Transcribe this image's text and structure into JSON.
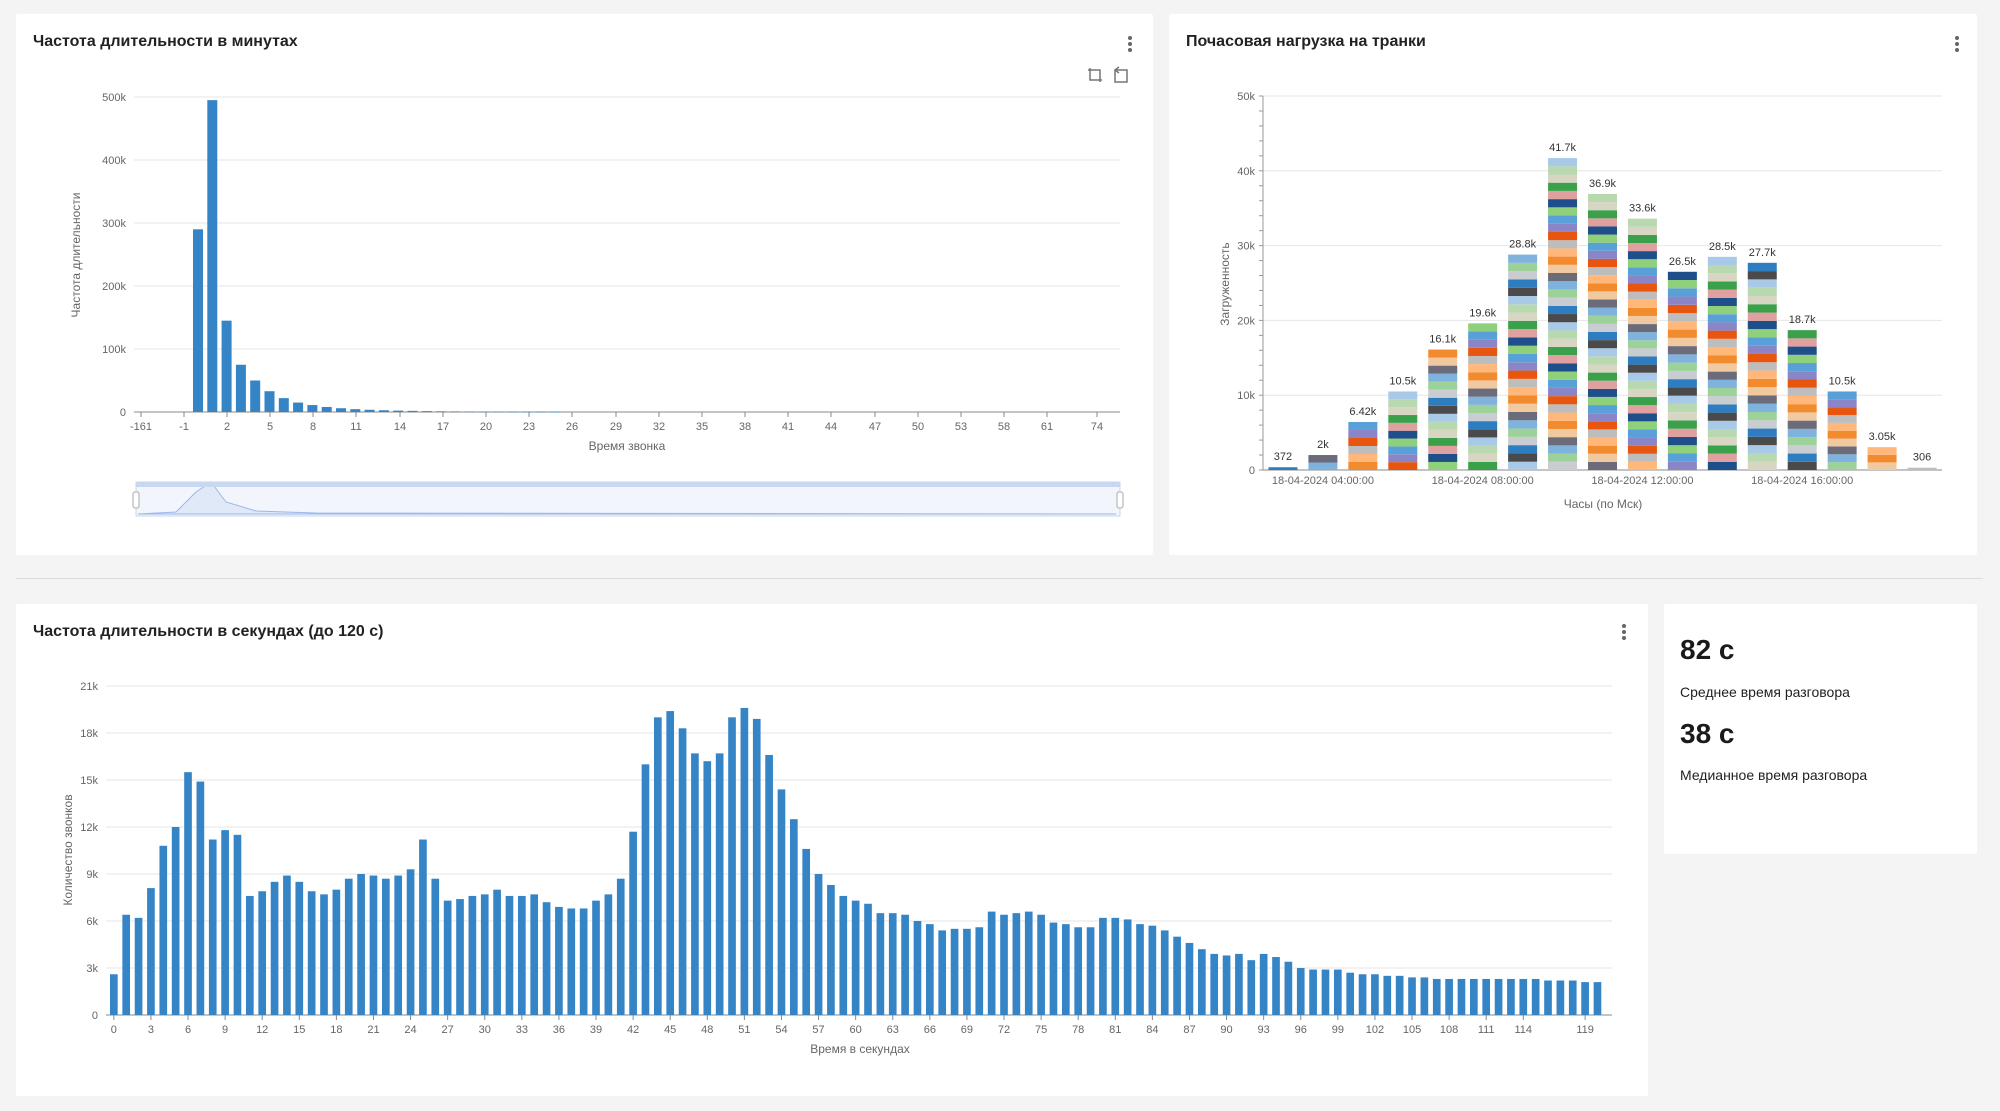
{
  "panels": {
    "minutes": {
      "title": "Частота длительности в минутах"
    },
    "trunks": {
      "title": "Почасовая нагрузка на транки"
    },
    "seconds": {
      "title": "Частота длительности в секундах (до 120 с)"
    },
    "stats": {
      "avg_value": "82 с",
      "avg_label": "Среднее время разговора",
      "median_value": "38 с",
      "median_label": "Медианное время разговора"
    }
  },
  "icons": {
    "menu": "kebab-menu-icon",
    "zoom": "zoom-select-icon",
    "reset": "zoom-reset-icon"
  },
  "colors": {
    "bar": "#3584c6",
    "grid": "#e6e6e6",
    "zoom_fill": "#dfe9f7"
  },
  "chart_data": [
    {
      "type": "bar",
      "title": "Частота длительности в минутах",
      "xlabel": "Время звонка",
      "ylabel": "Частота длительности",
      "ylim": [
        0,
        500000
      ],
      "y_ticks": [
        "0",
        "100k",
        "200k",
        "300k",
        "400k",
        "500k"
      ],
      "x_tick_labels": [
        "-161",
        "-1",
        "2",
        "5",
        "8",
        "11",
        "14",
        "17",
        "20",
        "23",
        "26",
        "29",
        "32",
        "35",
        "38",
        "41",
        "44",
        "47",
        "50",
        "53",
        "58",
        "61",
        "74"
      ],
      "bars": [
        {
          "x": 0,
          "value": 290000
        },
        {
          "x": 1,
          "value": 495000
        },
        {
          "x": 2,
          "value": 145000
        },
        {
          "x": 3,
          "value": 75000
        },
        {
          "x": 4,
          "value": 50000
        },
        {
          "x": 5,
          "value": 33000
        },
        {
          "x": 6,
          "value": 22000
        },
        {
          "x": 7,
          "value": 15000
        },
        {
          "x": 8,
          "value": 11000
        },
        {
          "x": 9,
          "value": 8000
        },
        {
          "x": 10,
          "value": 6000
        },
        {
          "x": 11,
          "value": 4500
        },
        {
          "x": 12,
          "value": 3500
        },
        {
          "x": 13,
          "value": 2800
        },
        {
          "x": 14,
          "value": 2200
        },
        {
          "x": 15,
          "value": 1800
        },
        {
          "x": 16,
          "value": 1400
        },
        {
          "x": 17,
          "value": 1100
        },
        {
          "x": 18,
          "value": 900
        },
        {
          "x": 19,
          "value": 700
        },
        {
          "x": 20,
          "value": 600
        },
        {
          "x": 21,
          "value": 500
        },
        {
          "x": 22,
          "value": 400
        },
        {
          "x": 23,
          "value": 350
        },
        {
          "x": 24,
          "value": 300
        },
        {
          "x": 25,
          "value": 250
        }
      ],
      "grid": true,
      "zoom_slider": true
    },
    {
      "type": "bar",
      "stacked": true,
      "title": "Почасовая нагрузка на транки",
      "xlabel": "Часы (по Мск)",
      "ylabel": "Загруженность",
      "ylim": [
        0,
        50000
      ],
      "y_ticks": [
        "0",
        "10k",
        "20k",
        "30k",
        "40k",
        "50k"
      ],
      "x_tick_labels": [
        "18-04-2024 04:00:00",
        "18-04-2024 08:00:00",
        "18-04-2024 12:00:00",
        "18-04-2024 16:00:00"
      ],
      "totals": [
        372,
        2000,
        6420,
        10500,
        16100,
        19600,
        28800,
        41700,
        36900,
        33600,
        26500,
        28500,
        27700,
        18700,
        10500,
        3050,
        306
      ],
      "total_labels": [
        "372",
        "2k",
        "6.42k",
        "10.5k",
        "16.1k",
        "19.6k",
        "28.8k",
        "41.7k",
        "36.9k",
        "33.6k",
        "26.5k",
        "28.5k",
        "27.7k",
        "18.7k",
        "10.5k",
        "3.05k",
        "306"
      ],
      "series_colors": [
        "#2f7dc1",
        "#7fb3de",
        "#f28a2e",
        "#e8550e",
        "#8fd07a",
        "#3aa14a",
        "#a9c9e8",
        "#c9ccd1",
        "#6b6b7a",
        "#ffb77a",
        "#8a85c7",
        "#1f4f8a",
        "#d6d6c2",
        "#4a4a4a",
        "#9dd19a",
        "#f0c9a0",
        "#bdbdbd",
        "#5aa0d8",
        "#e0a0a0",
        "#b8d8b0"
      ],
      "grid": true
    },
    {
      "type": "bar",
      "title": "Частота длительности в секундах (до 120 с)",
      "xlabel": "Время в секундах",
      "ylabel": "Количество звонков",
      "ylim": [
        0,
        21000
      ],
      "y_ticks": [
        "0",
        "3k",
        "6k",
        "9k",
        "12k",
        "15k",
        "18k",
        "21k"
      ],
      "x_tick_labels": [
        "0",
        "3",
        "6",
        "9",
        "12",
        "15",
        "18",
        "21",
        "24",
        "27",
        "30",
        "33",
        "36",
        "39",
        "42",
        "45",
        "48",
        "51",
        "54",
        "57",
        "60",
        "63",
        "66",
        "69",
        "72",
        "75",
        "78",
        "81",
        "84",
        "87",
        "90",
        "93",
        "96",
        "99",
        "102",
        "105",
        "108",
        "111",
        "114",
        "119"
      ],
      "values": [
        2600,
        6400,
        6200,
        8100,
        10800,
        12000,
        15500,
        14900,
        11200,
        11800,
        11500,
        7600,
        7900,
        8500,
        8900,
        8500,
        7900,
        7700,
        8000,
        8700,
        9000,
        8900,
        8700,
        8900,
        9300,
        11200,
        8700,
        7300,
        7400,
        7600,
        7700,
        8000,
        7600,
        7600,
        7700,
        7200,
        6900,
        6800,
        6800,
        7300,
        7700,
        8700,
        11700,
        16000,
        19000,
        19400,
        18300,
        16700,
        16200,
        16700,
        19000,
        19600,
        18900,
        16600,
        14400,
        12500,
        10600,
        9000,
        8300,
        7600,
        7300,
        7100,
        6500,
        6500,
        6400,
        6000,
        5800,
        5400,
        5500,
        5500,
        5600,
        6600,
        6400,
        6500,
        6600,
        6400,
        5900,
        5800,
        5600,
        5600,
        6200,
        6200,
        6100,
        5800,
        5700,
        5400,
        5000,
        4600,
        4200,
        3900,
        3800,
        3900,
        3500,
        3900,
        3700,
        3400,
        3000,
        2900,
        2900,
        2900,
        2700,
        2600,
        2600,
        2500,
        2500,
        2400,
        2400,
        2300,
        2300,
        2300,
        2300,
        2300,
        2300,
        2300,
        2300,
        2300,
        2200,
        2200,
        2200,
        2100,
        2100
      ],
      "grid": true
    }
  ]
}
